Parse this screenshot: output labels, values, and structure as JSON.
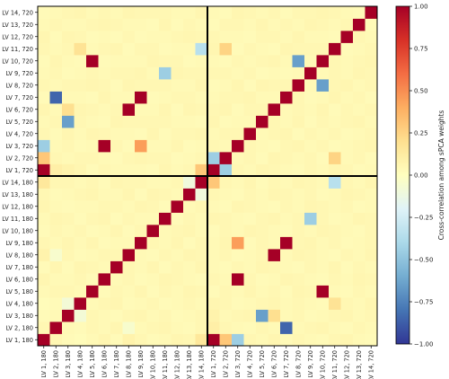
{
  "chart_data": {
    "type": "heatmap",
    "x_labels": [
      "LV 1, 180",
      "LV 2, 180",
      "LV 3, 180",
      "LV 4, 180",
      "LV 5, 180",
      "LV 6, 180",
      "LV 7, 180",
      "LV 8, 180",
      "LV 9, 180",
      "LV 10, 180",
      "LV 11, 180",
      "LV 12, 180",
      "LV 13, 180",
      "LV 14, 180",
      "LV 1, 720",
      "LV 2, 720",
      "LV 3, 720",
      "LV 4, 720",
      "LV 5, 720",
      "LV 6, 720",
      "LV 7, 720",
      "LV 8, 720",
      "LV 9, 720",
      "LV 10, 720",
      "LV 11, 720",
      "LV 12, 720",
      "LV 13, 720",
      "LV 14, 720"
    ],
    "y_labels": [
      "LV 1, 180",
      "LV 2, 180",
      "LV 3, 180",
      "LV 4, 180",
      "LV 5, 180",
      "LV 6, 180",
      "LV 7, 180",
      "LV 8, 180",
      "LV 9, 180",
      "LV 10, 180",
      "LV 11, 180",
      "LV 12, 180",
      "LV 13, 180",
      "LV 14, 180",
      "LV 1, 720",
      "LV 2, 720",
      "LV 3, 720",
      "LV 4, 720",
      "LV 5, 720",
      "LV 6, 720",
      "LV 7, 720",
      "LV 8, 720",
      "LV 9, 720",
      "LV 10, 720",
      "LV 11, 720",
      "LV 12, 720",
      "LV 13, 720",
      "LV 14, 720"
    ],
    "values": [
      [
        1,
        0.05,
        0.03,
        0.02,
        0.04,
        0.06,
        0.03,
        0.08,
        0.05,
        0.03,
        0.04,
        0.06,
        0.05,
        0.15,
        1,
        0.3,
        -0.45,
        0.05,
        0.04,
        0.06,
        0.03,
        0.05,
        0.04,
        0.03,
        0.05,
        0.06,
        0.04,
        0.03
      ],
      [
        0.05,
        1,
        0.04,
        0.03,
        0.05,
        0.04,
        0.06,
        -0.05,
        0.04,
        0.05,
        0.06,
        0.04,
        0.03,
        0.05,
        0.1,
        0.05,
        0.04,
        0.03,
        0.05,
        0.04,
        -0.85,
        0.04,
        0.05,
        0.06,
        0.04,
        0.03,
        0.05,
        0.04
      ],
      [
        0.03,
        0.04,
        1,
        -0.08,
        0.05,
        0.04,
        0.03,
        0.05,
        0.06,
        0.04,
        0.05,
        0.03,
        0.04,
        0.05,
        0.08,
        0.04,
        0.05,
        0.06,
        -0.65,
        0.2,
        0.04,
        0.05,
        0.03,
        0.04,
        0.05,
        0.06,
        0.04,
        0.05
      ],
      [
        0.02,
        0.03,
        -0.08,
        1,
        0.04,
        0.05,
        0.06,
        0.03,
        0.04,
        0.05,
        0.03,
        0.04,
        0.05,
        0.04,
        0.06,
        0.05,
        0.03,
        0.04,
        0.05,
        0.06,
        0.04,
        0.05,
        0.04,
        0.03,
        0.18,
        0.05,
        0.04,
        0.06
      ],
      [
        0.04,
        0.05,
        0.05,
        0.04,
        1,
        0.03,
        0.05,
        0.04,
        0.06,
        0.03,
        0.05,
        0.04,
        0.06,
        0.05,
        0.03,
        0.05,
        0.04,
        0.06,
        0.04,
        0.05,
        0.03,
        0.06,
        0.05,
        1,
        0.04,
        0.03,
        0.05,
        0.04
      ],
      [
        0.06,
        0.04,
        0.04,
        0.05,
        0.03,
        1,
        0.04,
        0.05,
        0.03,
        0.04,
        0.06,
        0.05,
        0.04,
        0.03,
        0.05,
        0.04,
        1,
        0.05,
        0.03,
        0.04,
        0.06,
        0.05,
        0.04,
        0.03,
        0.05,
        0.04,
        0.06,
        0.05
      ],
      [
        0.03,
        0.06,
        0.03,
        0.06,
        0.05,
        0.04,
        1,
        0.05,
        0.04,
        0.06,
        0.03,
        0.05,
        0.04,
        0.06,
        0.04,
        0.03,
        0.05,
        0.04,
        0.06,
        0.05,
        0.04,
        0.03,
        0.05,
        0.04,
        0.06,
        0.03,
        0.05,
        0.04
      ],
      [
        0.08,
        -0.05,
        0.05,
        0.03,
        0.04,
        0.05,
        0.05,
        1,
        0.04,
        0.03,
        0.05,
        0.04,
        0.06,
        0.05,
        0.04,
        0.05,
        0.03,
        0.04,
        0.05,
        1,
        0.04,
        0.06,
        0.05,
        0.04,
        0.03,
        0.05,
        0.04,
        0.06
      ],
      [
        0.05,
        0.04,
        0.06,
        0.04,
        0.06,
        0.03,
        0.04,
        0.04,
        1,
        0.05,
        0.04,
        0.06,
        0.03,
        0.05,
        0.04,
        0.06,
        0.45,
        0.03,
        0.05,
        0.04,
        1,
        0.05,
        0.06,
        0.04,
        0.05,
        0.03,
        0.04,
        0.05
      ],
      [
        0.03,
        0.05,
        0.04,
        0.05,
        0.03,
        0.04,
        0.06,
        0.03,
        0.05,
        1,
        0.04,
        0.05,
        0.06,
        0.04,
        0.03,
        0.05,
        0.04,
        0.06,
        0.05,
        0.04,
        0.03,
        0.05,
        0.04,
        0.06,
        0.05,
        0.04,
        0.03,
        0.05
      ],
      [
        0.04,
        0.06,
        0.05,
        0.03,
        0.05,
        0.06,
        0.03,
        0.05,
        0.04,
        0.04,
        1,
        0.03,
        0.05,
        0.04,
        0.06,
        0.05,
        0.04,
        0.03,
        0.05,
        0.06,
        0.04,
        0.05,
        -0.45,
        0.05,
        0.03,
        0.04,
        0.06,
        0.05
      ],
      [
        0.06,
        0.04,
        0.03,
        0.04,
        0.04,
        0.05,
        0.05,
        0.04,
        0.06,
        0.05,
        0.03,
        1,
        0.04,
        0.05,
        0.04,
        0.03,
        0.06,
        0.05,
        0.04,
        0.03,
        0.05,
        0.04,
        0.06,
        0.05,
        0.04,
        0.05,
        0.03,
        0.04
      ],
      [
        0.05,
        0.03,
        0.04,
        0.05,
        0.06,
        0.04,
        0.04,
        0.06,
        0.03,
        0.06,
        0.05,
        0.04,
        1,
        -0.1,
        0.05,
        0.04,
        0.03,
        0.05,
        0.04,
        0.06,
        0.05,
        0.04,
        0.05,
        0.03,
        0.04,
        0.06,
        0.05,
        0.04
      ],
      [
        0.15,
        0.05,
        0.05,
        0.04,
        0.05,
        0.03,
        0.06,
        0.05,
        0.05,
        0.04,
        0.04,
        0.05,
        -0.1,
        1,
        0.3,
        0.05,
        0.04,
        0.06,
        0.03,
        0.05,
        0.04,
        0.06,
        0.05,
        0.04,
        -0.35,
        0.05,
        0.04,
        0.06
      ],
      [
        1,
        0.1,
        0.08,
        0.06,
        0.03,
        0.05,
        0.04,
        0.04,
        0.04,
        0.03,
        0.06,
        0.04,
        0.05,
        0.3,
        1,
        -0.45,
        0.05,
        0.04,
        0.06,
        0.05,
        0.04,
        0.03,
        0.05,
        0.04,
        0.06,
        0.05,
        0.03,
        0.04
      ],
      [
        0.3,
        0.05,
        0.04,
        0.05,
        0.05,
        0.04,
        0.03,
        0.05,
        0.06,
        0.05,
        0.05,
        0.03,
        0.04,
        0.05,
        -0.45,
        1,
        0.04,
        0.05,
        0.03,
        0.06,
        0.05,
        0.04,
        0.05,
        0.03,
        0.25,
        0.04,
        0.05,
        0.03
      ],
      [
        -0.45,
        0.04,
        0.05,
        0.03,
        0.04,
        1,
        0.05,
        0.03,
        0.45,
        0.04,
        0.04,
        0.06,
        0.03,
        0.04,
        0.05,
        0.04,
        1,
        0.05,
        0.04,
        0.03,
        0.05,
        0.06,
        0.04,
        0.05,
        0.03,
        0.04,
        0.05,
        0.06
      ],
      [
        0.05,
        0.03,
        0.06,
        0.04,
        0.06,
        0.05,
        0.04,
        0.04,
        0.03,
        0.06,
        0.03,
        0.05,
        0.05,
        0.06,
        0.04,
        0.05,
        0.05,
        1,
        0.04,
        0.05,
        0.06,
        0.03,
        0.05,
        0.04,
        0.05,
        0.03,
        0.04,
        0.05
      ],
      [
        0.04,
        0.05,
        -0.65,
        0.05,
        0.04,
        0.03,
        0.06,
        0.05,
        0.05,
        0.05,
        0.05,
        0.04,
        0.04,
        0.03,
        0.06,
        0.03,
        0.04,
        0.04,
        1,
        0.05,
        0.04,
        0.06,
        0.03,
        0.05,
        0.04,
        0.05,
        0.06,
        0.04
      ],
      [
        0.06,
        0.04,
        0.2,
        0.06,
        0.05,
        0.04,
        0.05,
        1,
        0.04,
        0.04,
        0.06,
        0.03,
        0.06,
        0.05,
        0.05,
        0.06,
        0.03,
        0.05,
        0.05,
        1,
        0.04,
        0.05,
        0.04,
        0.06,
        0.03,
        0.05,
        0.04,
        0.05
      ],
      [
        0.03,
        -0.85,
        0.04,
        0.04,
        0.03,
        0.06,
        0.04,
        0.04,
        1,
        0.03,
        0.04,
        0.05,
        0.05,
        0.04,
        0.04,
        0.05,
        0.05,
        0.06,
        0.04,
        0.04,
        1,
        0.05,
        0.03,
        0.04,
        0.06,
        0.04,
        0.05,
        0.03
      ],
      [
        0.05,
        0.04,
        0.05,
        0.05,
        0.06,
        0.05,
        0.03,
        0.06,
        0.05,
        0.05,
        0.05,
        0.04,
        0.04,
        0.06,
        0.03,
        0.04,
        0.06,
        0.03,
        0.06,
        0.05,
        0.05,
        1,
        0.04,
        -0.65,
        0.05,
        0.06,
        0.04,
        0.05
      ],
      [
        0.04,
        0.05,
        0.03,
        0.04,
        0.05,
        0.04,
        0.05,
        0.05,
        0.06,
        0.04,
        -0.45,
        0.06,
        0.05,
        0.05,
        0.05,
        0.05,
        0.04,
        0.05,
        0.03,
        0.04,
        0.03,
        0.04,
        1,
        0.04,
        0.05,
        0.04,
        0.06,
        0.05
      ],
      [
        0.03,
        0.06,
        0.04,
        0.03,
        1,
        0.03,
        0.04,
        0.04,
        0.04,
        0.06,
        0.05,
        0.05,
        0.03,
        0.04,
        0.04,
        0.03,
        0.05,
        0.04,
        0.05,
        0.06,
        0.04,
        -0.65,
        0.04,
        1,
        0.05,
        0.04,
        0.05,
        0.06
      ],
      [
        0.05,
        0.04,
        0.05,
        0.18,
        0.04,
        0.05,
        0.06,
        0.03,
        0.05,
        0.05,
        0.03,
        0.04,
        0.04,
        -0.35,
        0.06,
        0.25,
        0.03,
        0.05,
        0.04,
        0.03,
        0.06,
        0.05,
        0.05,
        0.05,
        1,
        0.03,
        0.04,
        0.05
      ],
      [
        0.06,
        0.03,
        0.06,
        0.05,
        0.03,
        0.04,
        0.03,
        0.05,
        0.03,
        0.04,
        0.04,
        0.05,
        0.06,
        0.05,
        0.05,
        0.04,
        0.04,
        0.03,
        0.05,
        0.05,
        0.04,
        0.06,
        0.04,
        0.04,
        0.03,
        1,
        0.05,
        0.04
      ],
      [
        0.04,
        0.05,
        0.04,
        0.04,
        0.05,
        0.06,
        0.05,
        0.04,
        0.04,
        0.03,
        0.06,
        0.03,
        0.05,
        0.04,
        0.03,
        0.05,
        0.05,
        0.04,
        0.06,
        0.04,
        0.05,
        0.04,
        0.06,
        0.05,
        0.04,
        0.05,
        1,
        0.03
      ],
      [
        0.03,
        0.04,
        0.05,
        0.06,
        0.04,
        0.05,
        0.04,
        0.06,
        0.05,
        0.05,
        0.05,
        0.04,
        0.04,
        0.06,
        0.04,
        0.03,
        0.06,
        0.05,
        0.04,
        0.05,
        0.03,
        0.05,
        0.05,
        0.06,
        0.05,
        0.04,
        0.03,
        1
      ]
    ],
    "colorbar": {
      "label": "Cross-correlation among sPCA weights",
      "range": [
        -1,
        1
      ],
      "ticks": [
        1.0,
        0.75,
        0.5,
        0.25,
        0.0,
        -0.25,
        -0.5,
        -0.75,
        -1.0
      ],
      "tick_labels": [
        "1.00",
        "0.75",
        "0.50",
        "0.25",
        "0.00",
        "−0.25",
        "−0.50",
        "−0.75",
        "−1.00"
      ],
      "colormap": "RdYlBu_r"
    },
    "divider_after_index": 14
  }
}
